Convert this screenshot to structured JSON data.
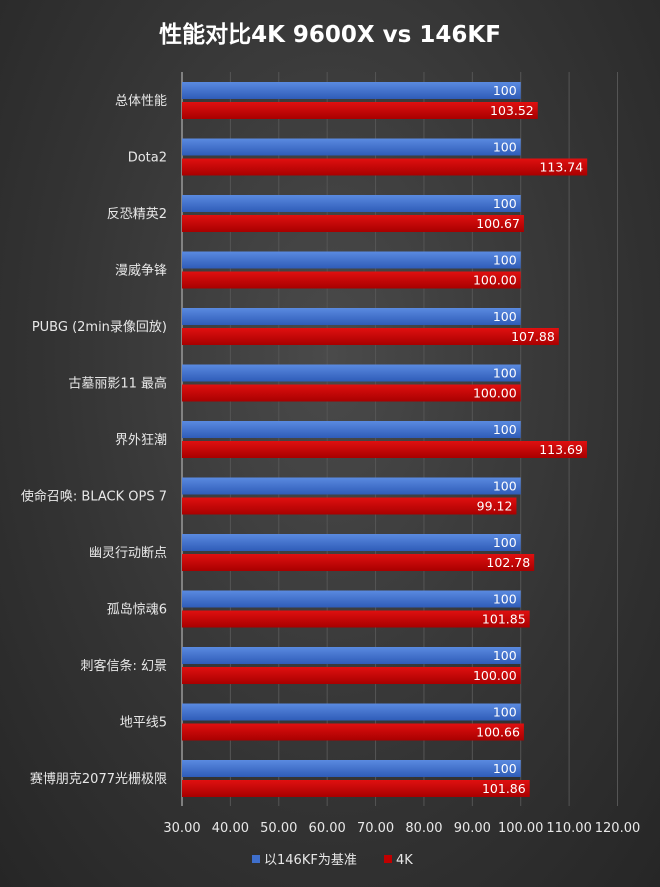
{
  "chart_data": {
    "type": "bar",
    "orientation": "horizontal",
    "title": "性能对比4K 9600X vs 146KF",
    "categories": [
      "总体性能",
      "Dota2",
      "反恐精英2",
      "漫威争锋",
      "PUBG (2min录像回放)",
      "古墓丽影11 最高",
      "界外狂潮",
      "使命召唤: BLACK OPS 7",
      "幽灵行动断点",
      "孤岛惊魂6",
      "刺客信条: 幻景",
      "地平线5",
      "赛博朋克2077光栅极限"
    ],
    "series": [
      {
        "name": "以146KF为基准",
        "color": "#3f6fcc",
        "values": [
          100,
          100,
          100,
          100,
          100,
          100,
          100,
          100,
          100,
          100,
          100,
          100,
          100
        ],
        "labels": [
          "100",
          "100",
          "100",
          "100",
          "100",
          "100",
          "100",
          "100",
          "100",
          "100",
          "100",
          "100",
          "100"
        ]
      },
      {
        "name": "4K",
        "color": "#c00000",
        "values": [
          103.52,
          113.74,
          100.67,
          100.0,
          107.88,
          100.0,
          113.69,
          99.12,
          102.78,
          101.85,
          100.0,
          100.66,
          101.86
        ],
        "labels": [
          "103.52",
          "113.74",
          "100.67",
          "100.00",
          "107.88",
          "100.00",
          "113.69",
          "99.12",
          "102.78",
          "101.85",
          "100.00",
          "100.66",
          "101.86"
        ]
      }
    ],
    "xlim": [
      30,
      120
    ],
    "xticks": [
      "30.00",
      "40.00",
      "50.00",
      "60.00",
      "70.00",
      "80.00",
      "90.00",
      "100.00",
      "110.00",
      "120.00"
    ],
    "grid": true,
    "legend": "bottom"
  }
}
